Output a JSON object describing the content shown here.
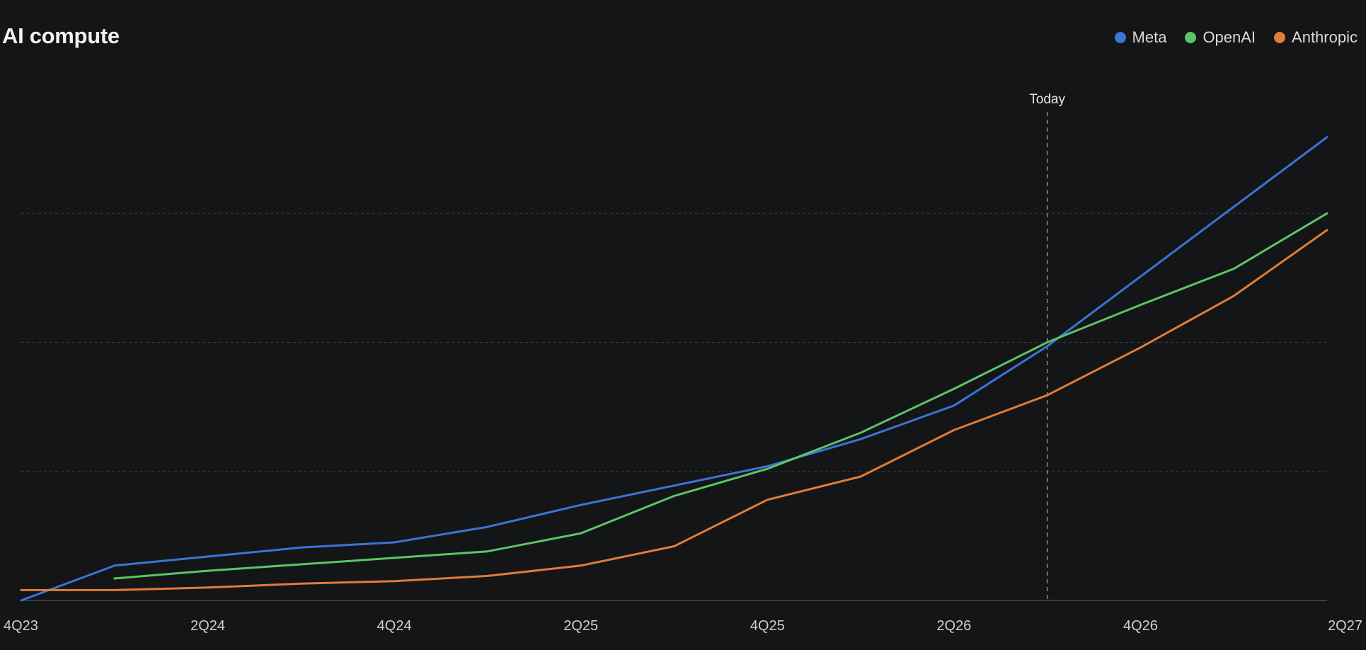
{
  "chart_data": {
    "type": "line",
    "title": "AI compute",
    "xlabel": "",
    "ylabel": "",
    "x": [
      "4Q23",
      "1Q24",
      "2Q24",
      "3Q24",
      "4Q24",
      "1Q25",
      "2Q25",
      "3Q25",
      "4Q25",
      "1Q26",
      "2Q26",
      "3Q26",
      "4Q26",
      "1Q27",
      "2Q27"
    ],
    "xticks": [
      "4Q23",
      "2Q24",
      "4Q24",
      "2Q25",
      "4Q25",
      "2Q26",
      "4Q26",
      "2Q27"
    ],
    "ylim": [
      0,
      4
    ],
    "grid": true,
    "legend_position": "top-right",
    "annotation": {
      "label": "Today",
      "x": "3Q26"
    },
    "series": [
      {
        "name": "Meta",
        "color": "#3b73d9",
        "values": [
          0.0,
          0.27,
          0.34,
          0.41,
          0.45,
          0.57,
          0.74,
          0.89,
          1.04,
          1.25,
          1.51,
          1.97,
          2.51,
          3.05,
          3.59
        ]
      },
      {
        "name": "OpenAI",
        "color": "#5cc466",
        "values": [
          null,
          0.17,
          0.23,
          0.28,
          0.33,
          0.38,
          0.52,
          0.81,
          1.02,
          1.3,
          1.64,
          2.0,
          2.29,
          2.57,
          3.0
        ]
      },
      {
        "name": "Anthropic",
        "color": "#e07c38",
        "values": [
          0.08,
          0.08,
          0.1,
          0.13,
          0.15,
          0.19,
          0.27,
          0.42,
          0.78,
          0.96,
          1.32,
          1.59,
          1.96,
          2.36,
          2.87
        ]
      }
    ]
  }
}
